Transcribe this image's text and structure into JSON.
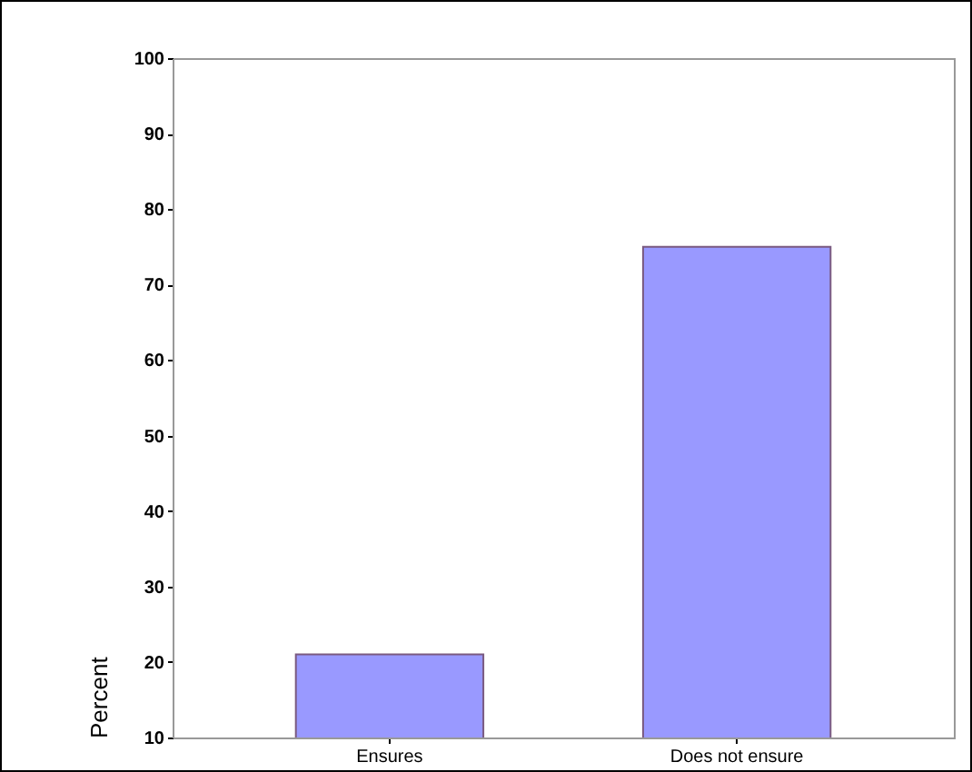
{
  "chart_data": {
    "type": "bar",
    "ylabel": "Percent",
    "categories": [
      "Ensures",
      "Does not ensure"
    ],
    "values": [
      21,
      75
    ],
    "color": "#9999ff",
    "ylim": [
      10,
      100
    ],
    "yticks": [
      10,
      20,
      30,
      40,
      50,
      60,
      70,
      80,
      90,
      100
    ],
    "grid": false
  }
}
